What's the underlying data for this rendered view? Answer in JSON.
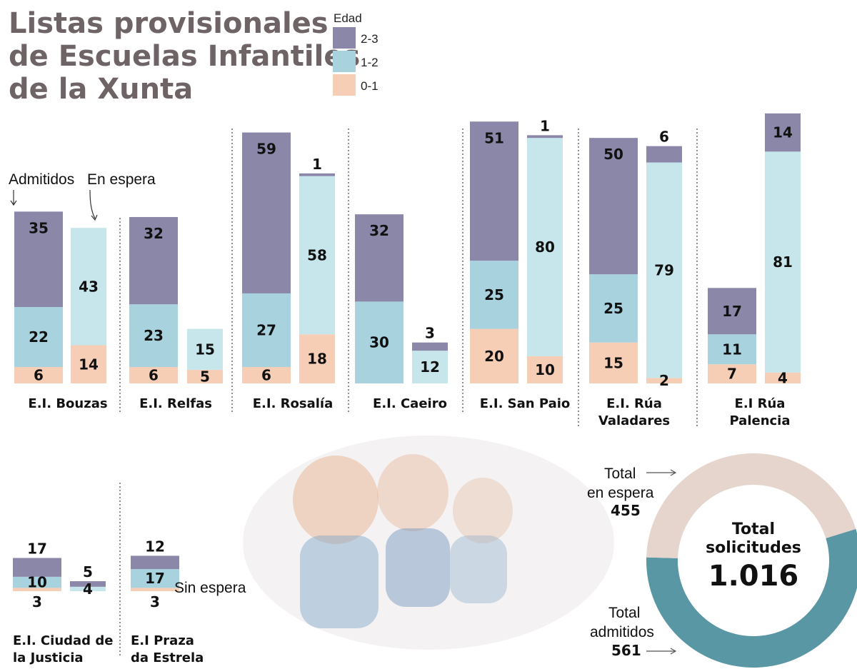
{
  "title_lines": [
    "Listas provisionales",
    "de Escuelas Infantiles",
    "de la Xunta"
  ],
  "colors": {
    "age_2_3": "#8a87a9",
    "age_1_2": "#a8d3de",
    "age_1_2_light": "#c6e6ec",
    "age_0_1": "#f6cdb5",
    "donut_admitted": "#5a97a4",
    "donut_waiting": "#e5d5cd",
    "title": "#6e6466"
  },
  "legend": {
    "title": "Edad",
    "items": [
      "2-3",
      "1-2",
      "0-1"
    ]
  },
  "annotations": {
    "admitidos": "Admitidos",
    "en_espera": "En espera",
    "sin_espera": "Sin espera"
  },
  "chart_data": {
    "type": "bar",
    "stacked": true,
    "stack_order": [
      "0-1",
      "1-2",
      "2-3"
    ],
    "categories": [
      "E.I. Bouzas",
      "E.I. Relfas",
      "E.I. Rosalía",
      "E.I. Caeiro",
      "E.I. San Paio",
      "E.I. Rúa Valadares",
      "E.I Rúa Palencia",
      "E.I. Ciudad de la Justicia",
      "E.I Praza da Estrela"
    ],
    "schools": [
      {
        "name": "E.I. Bouzas",
        "admitidos": {
          "0-1": 6,
          "1-2": 22,
          "2-3": 35
        },
        "en_espera": {
          "0-1": 14,
          "1-2": 43,
          "2-3": 0
        }
      },
      {
        "name": "E.I. Relfas",
        "admitidos": {
          "0-1": 6,
          "1-2": 23,
          "2-3": 32
        },
        "en_espera": {
          "0-1": 5,
          "1-2": 15,
          "2-3": 0
        }
      },
      {
        "name": "E.I. Rosalía",
        "admitidos": {
          "0-1": 6,
          "1-2": 27,
          "2-3": 59
        },
        "en_espera": {
          "0-1": 18,
          "1-2": 58,
          "2-3": 1
        }
      },
      {
        "name": "E.I. Caeiro",
        "admitidos": {
          "0-1": 0,
          "1-2": 30,
          "2-3": 32
        },
        "en_espera": {
          "0-1": 0,
          "1-2": 12,
          "2-3": 3
        }
      },
      {
        "name": "E.I. San Paio",
        "admitidos": {
          "0-1": 20,
          "1-2": 25,
          "2-3": 51
        },
        "en_espera": {
          "0-1": 10,
          "1-2": 80,
          "2-3": 1
        }
      },
      {
        "name": "E.I. Rúa Valadares",
        "admitidos": {
          "0-1": 15,
          "1-2": 25,
          "2-3": 50
        },
        "en_espera": {
          "0-1": 2,
          "1-2": 79,
          "2-3": 6
        }
      },
      {
        "name": "E.I Rúa Palencia",
        "admitidos": {
          "0-1": 7,
          "1-2": 11,
          "2-3": 17
        },
        "en_espera": {
          "0-1": 4,
          "1-2": 81,
          "2-3": 14
        }
      },
      {
        "name": "E.I. Ciudad de la Justicia",
        "admitidos": {
          "0-1": 3,
          "1-2": 10,
          "2-3": 17
        },
        "en_espera": {
          "0-1": 0,
          "1-2": 4,
          "2-3": 5
        }
      },
      {
        "name": "E.I Praza da Estrela",
        "admitidos": {
          "0-1": 3,
          "1-2": 17,
          "2-3": 12
        },
        "en_espera": null
      }
    ],
    "totals": {
      "en_espera_label": [
        "Total",
        "en espera"
      ],
      "en_espera": "455",
      "admitidos_label": [
        "Total",
        "admitidos"
      ],
      "admitidos": "561",
      "solicitudes_label": [
        "Total",
        "solicitudes"
      ],
      "solicitudes": "1.016"
    },
    "donut": {
      "type": "pie",
      "slices": [
        {
          "label": "admitidos",
          "value": 561
        },
        {
          "label": "en espera",
          "value": 455
        }
      ]
    }
  }
}
